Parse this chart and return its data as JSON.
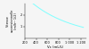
{
  "xlabel": "Vc (mL/L)",
  "ylabel_lines": [
    "Vitesse",
    "ascensionnelle",
    "(m/h²⋅ 1/2)"
  ],
  "xlim": [
    200,
    1300
  ],
  "ylim": [
    0,
    3.0
  ],
  "xticks": [
    200,
    400,
    600,
    800,
    1000,
    1200
  ],
  "xtick_labels": [
    "200",
    "400",
    "600",
    "800",
    "1 000",
    "1 200"
  ],
  "yticks": [
    1,
    2
  ],
  "ytick_labels": [
    "1",
    "2"
  ],
  "line_color": "#7fffff",
  "bg_color": "#f5f5f5",
  "x_start": 200,
  "x_end": 1250,
  "curve_a": 3.6,
  "curve_b": 0.9,
  "curve_x0": 200,
  "curve_k": 700
}
